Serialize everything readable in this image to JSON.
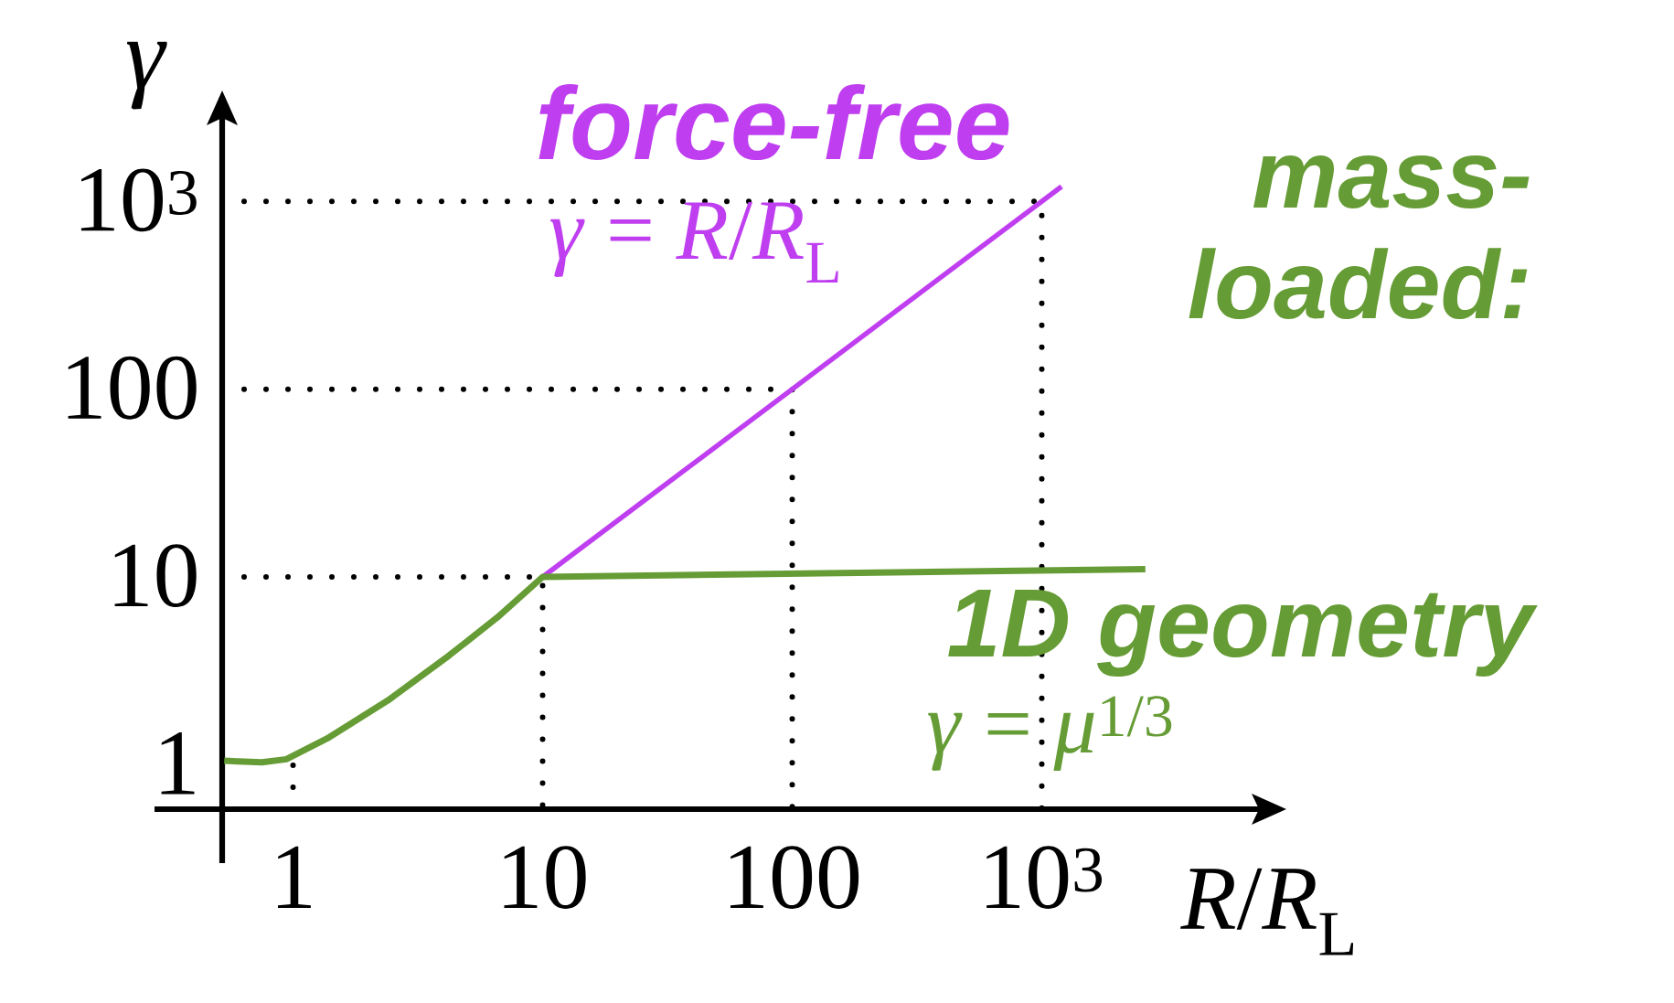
{
  "chart_data": {
    "type": "line",
    "xlabel": "*R*/*R*$_{L}$",
    "ylabel": "γ",
    "annotations": [
      "*γ* = *R*/*R*$_{L}$",
      "1D geometry",
      "*γ* = *μ*$^{1/3}$"
    ],
    "log": "xy",
    "xlim": [
      0.52,
      9000
    ],
    "ylim": [
      0.58,
      3600
    ],
    "xticks": [
      1,
      10,
      100,
      {
        "value": 1000,
        "label": "10$^{3}$"
      }
    ],
    "yticks": [
      1,
      10,
      100,
      {
        "value": 1000,
        "label": "10$^{3}$"
      }
    ],
    "series": [
      {
        "color": "#000000",
        "line_style": "dotted",
        "x": [
          0.52,
          1000,
          1000
        ],
        "values": [
          1000,
          1000,
          0.58
        ]
      },
      {
        "color": "#000000",
        "line_style": "dotted",
        "x": [
          0.52,
          100,
          100
        ],
        "values": [
          100,
          100,
          0.58
        ]
      },
      {
        "color": "#000000",
        "line_style": "dotted",
        "x": [
          0.52,
          10,
          10
        ],
        "values": [
          10,
          10,
          0.58
        ]
      },
      {
        "color": "#000000",
        "line_style": "dotted",
        "x": [
          1,
          1
        ],
        "values": [
          0.58,
          1
        ]
      },
      {
        "name": "force-free",
        "color": "#bf3ff0",
        "x": [
          10,
          1200
        ],
        "values": [
          10,
          1200
        ]
      },
      {
        "name": "mass-loaded:",
        "color": "#669c35",
        "x": [
          0.53,
          0.75,
          0.94,
          1.37,
          2.4,
          4.2,
          6.6,
          10,
          2600
        ],
        "values": [
          1.05,
          1.03,
          1.07,
          1.38,
          2.2,
          3.8,
          6.1,
          10,
          11
        ]
      }
    ]
  }
}
